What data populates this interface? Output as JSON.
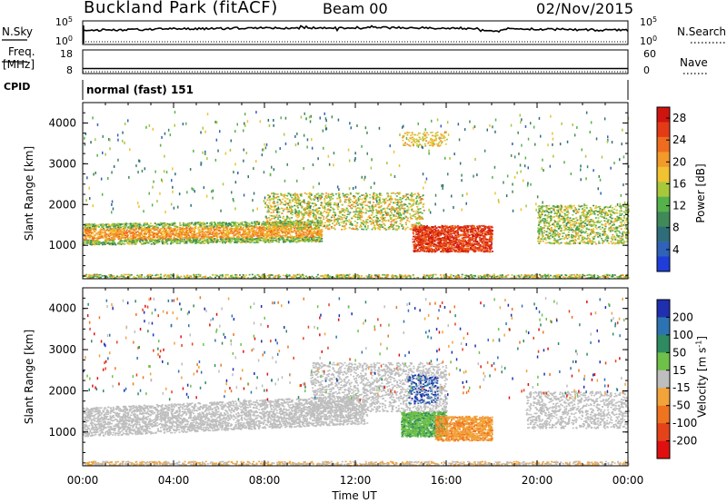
{
  "header": {
    "station": "Buckland Park (fitACF)",
    "beam": "Beam 00",
    "date": "02/Nov/2015"
  },
  "strips": {
    "nsky": {
      "label": "N.Sky",
      "left_ticks": [
        "10^5",
        "10^0"
      ],
      "right_label": "N.Search",
      "right_ticks": [
        "10^5",
        "10^0"
      ]
    },
    "freq": {
      "label_line1": "Freq.",
      "label_line2": "[MHz]",
      "left_ticks": [
        "18",
        "8"
      ],
      "right_label": "Nave",
      "right_ticks": [
        "60",
        "0"
      ]
    },
    "cpid": {
      "label": "CPID",
      "value": "normal (fast) 151"
    }
  },
  "chart_data": [
    {
      "type": "heatmap",
      "panel": "power",
      "ylabel": "Slant Range [km]",
      "xlabel": "",
      "ylim": [
        180,
        4500
      ],
      "xlim": [
        0,
        24
      ],
      "y_ticks": [
        "1000",
        "2000",
        "3000",
        "4000"
      ],
      "colorbar": {
        "label": "Power [dB]",
        "ticks": [
          "4",
          "8",
          "12",
          "16",
          "20",
          "24",
          "28"
        ],
        "range": [
          0,
          30
        ],
        "colors": [
          "#1e3dd9",
          "#2f62b8",
          "#2f6e79",
          "#3f8a58",
          "#55b24a",
          "#a8c83c",
          "#f1c232",
          "#f29a2a",
          "#ef6c1f",
          "#e33b16",
          "#cf1410"
        ]
      },
      "echo_features": [
        {
          "name": "main F-region band",
          "t": [
            0,
            10.5
          ],
          "range_km": [
            1050,
            1600
          ],
          "value_db": [
            10,
            22
          ]
        },
        {
          "name": "rising band",
          "t": [
            8,
            15
          ],
          "range_km": [
            1400,
            2300
          ],
          "value_db": [
            10,
            20
          ]
        },
        {
          "name": "strong patch",
          "t": [
            14.5,
            18
          ],
          "range_km": [
            850,
            1500
          ],
          "value_db": [
            20,
            30
          ]
        },
        {
          "name": "evening band",
          "t": [
            20,
            24
          ],
          "range_km": [
            1050,
            2000
          ],
          "value_db": [
            10,
            20
          ]
        },
        {
          "name": "ground/near-range",
          "t": [
            0,
            24
          ],
          "range_km": [
            200,
            300
          ],
          "value_db": [
            10,
            22
          ]
        }
      ]
    },
    {
      "type": "heatmap",
      "panel": "velocity",
      "ylabel": "Slant Range [km]",
      "xlabel": "Time UT",
      "ylim": [
        180,
        4500
      ],
      "xlim": [
        0,
        24
      ],
      "y_ticks": [
        "1000",
        "2000",
        "3000",
        "4000"
      ],
      "x_ticks": [
        "00:00",
        "04:00",
        "08:00",
        "12:00",
        "16:00",
        "20:00",
        "00:00"
      ],
      "colorbar": {
        "label": "Velocity [m s^-1]",
        "ticks": [
          "200",
          "100",
          "50",
          "15",
          "-15",
          "-50",
          "-100",
          "-200"
        ],
        "colors": [
          "#1f2fb0",
          "#2d73b3",
          "#2e8a60",
          "#6ec048",
          "#bebebe",
          "#f2a33a",
          "#ef7420",
          "#e4431a",
          "#e01010"
        ]
      },
      "echo_features": [
        {
          "name": "ground scatter band",
          "t": [
            0,
            12
          ],
          "range_km": [
            900,
            1600
          ],
          "velocity": "-15 to 15"
        },
        {
          "name": "positive velocity patch",
          "t": [
            14,
            16
          ],
          "range_km": [
            900,
            1500
          ],
          "velocity": "50 to 100"
        },
        {
          "name": "negative velocity patch",
          "t": [
            15.5,
            18
          ],
          "range_km": [
            800,
            1400
          ],
          "velocity": "-50 to -15"
        }
      ]
    }
  ]
}
